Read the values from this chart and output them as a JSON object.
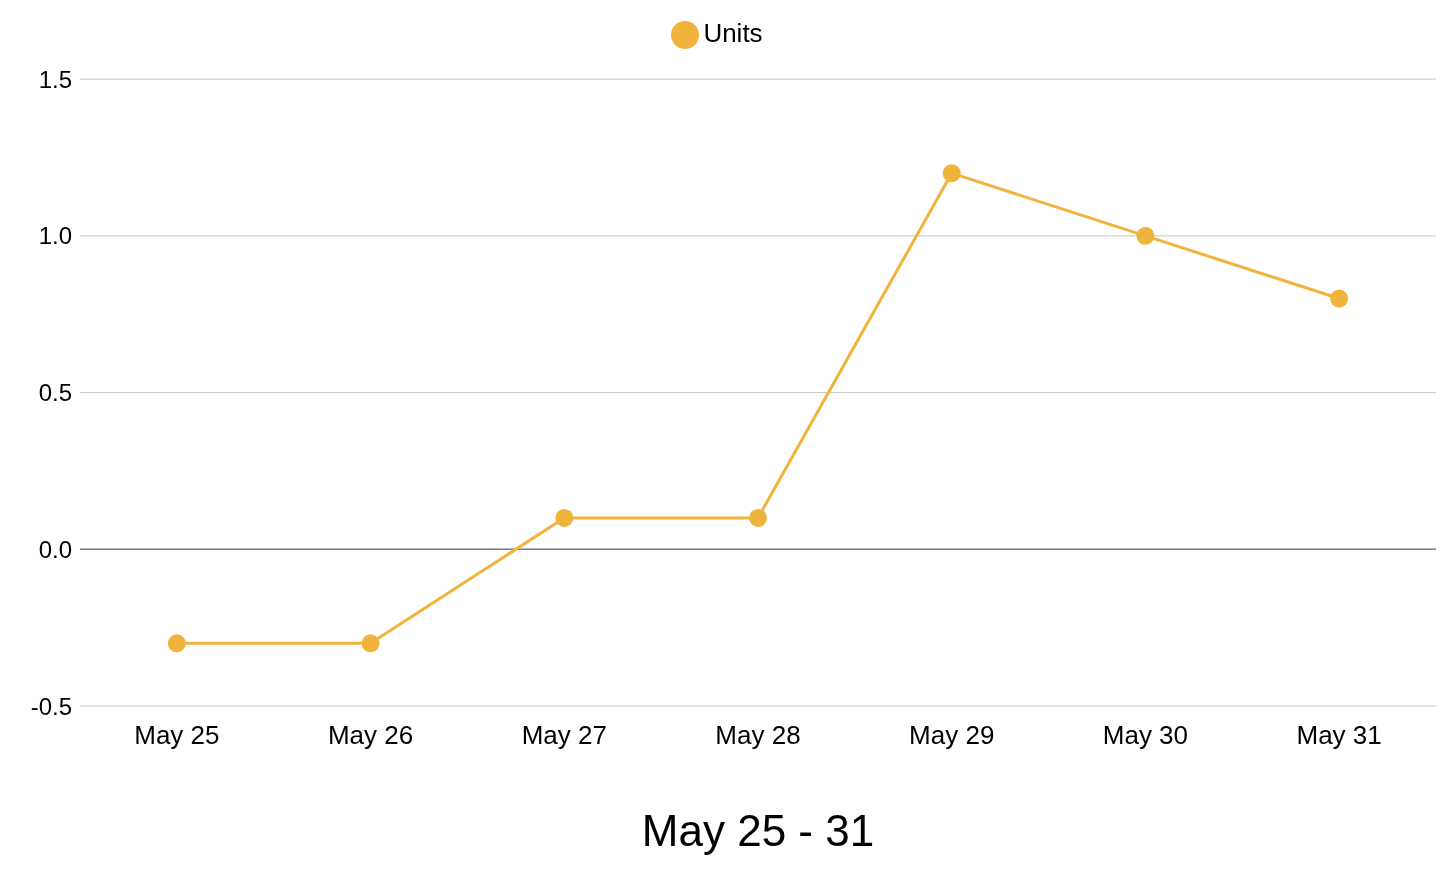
{
  "chart_data": {
    "type": "line",
    "xlabel": "May 25 - 31",
    "categories": [
      "May 25",
      "May 26",
      "May 27",
      "May 28",
      "May 29",
      "May 30",
      "May 31"
    ],
    "series": [
      {
        "name": "Units",
        "color": "#f0b43c",
        "values": [
          -0.3,
          -0.3,
          0.1,
          0.1,
          1.2,
          1.0,
          0.8
        ]
      }
    ],
    "ylim": [
      -0.5,
      1.5
    ],
    "yticks": [
      {
        "value": -0.5,
        "label": "-0.5"
      },
      {
        "value": 0,
        "label": "0.0"
      },
      {
        "value": 0.5,
        "label": "0.5"
      },
      {
        "value": 1,
        "label": "1.0"
      },
      {
        "value": 1.5,
        "label": "1.5"
      }
    ],
    "ref_lines": [
      {
        "axis": "y",
        "value": 0,
        "color": "#7f7f7f"
      }
    ],
    "grid": "y",
    "legend": "top",
    "marker": "circle",
    "line_style": "solid"
  }
}
